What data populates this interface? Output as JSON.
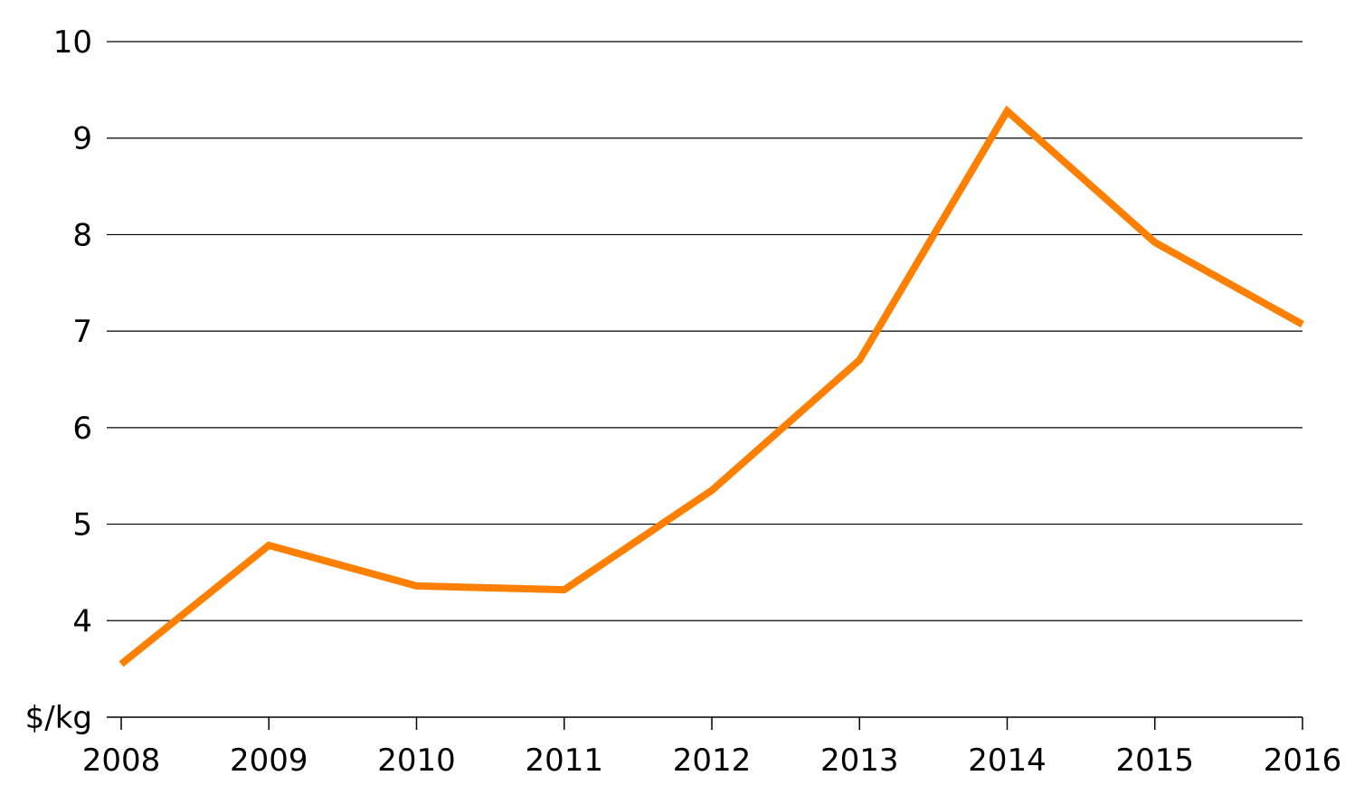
{
  "chart_data": {
    "type": "line",
    "title": "",
    "xlabel": "",
    "ylabel": "",
    "y_unit_label": "$/kg",
    "categories": [
      "2008",
      "2009",
      "2010",
      "2011",
      "2012",
      "2013",
      "2014",
      "2015",
      "2016"
    ],
    "series": [
      {
        "values": [
          3.55,
          4.78,
          4.36,
          4.32,
          5.35,
          6.7,
          9.28,
          7.92,
          7.07
        ],
        "color": "#ff7f00"
      }
    ],
    "ylim": [
      3,
      10
    ],
    "yticks": [
      "4",
      "5",
      "6",
      "7",
      "8",
      "9",
      "10"
    ],
    "grid": true,
    "legend": "none"
  }
}
